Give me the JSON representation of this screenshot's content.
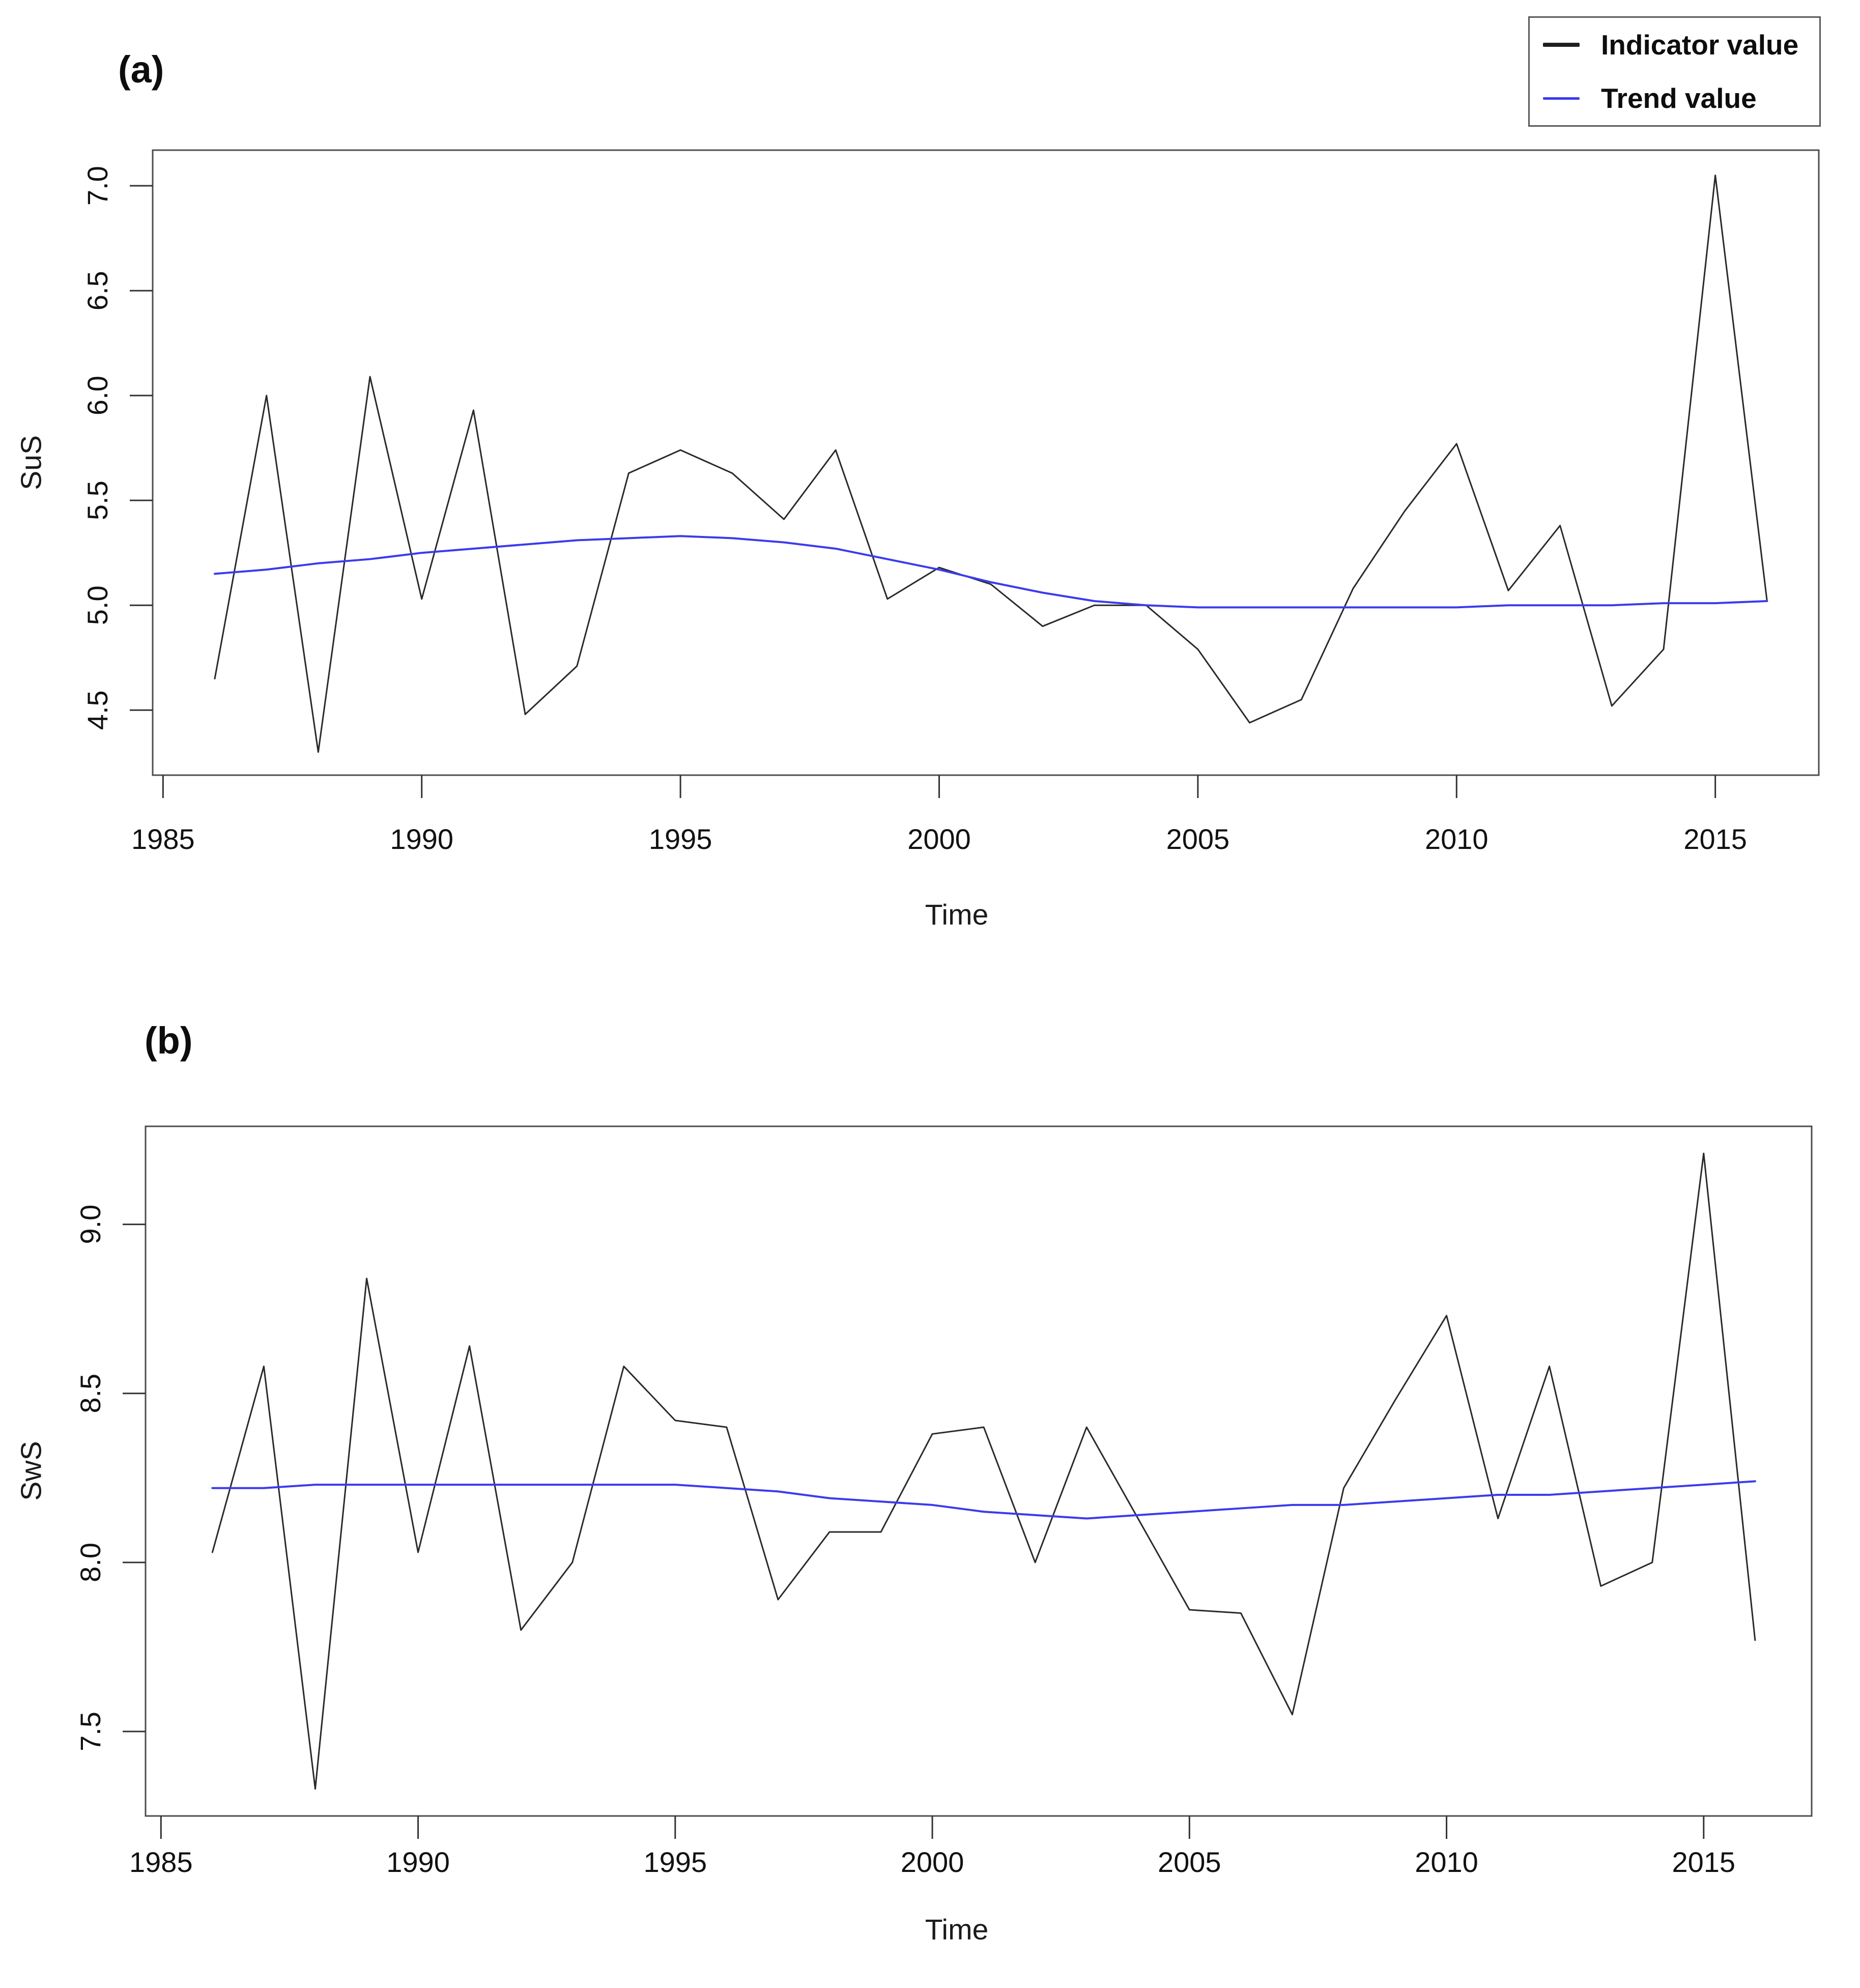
{
  "page": {
    "background": "#ffffff"
  },
  "panels": [
    {
      "label": "(a)"
    },
    {
      "label": "(b)"
    }
  ],
  "legend": {
    "position": "top-right",
    "items": [
      {
        "label": "Indicator value",
        "color": "#1f1f1f"
      },
      {
        "label": "Trend value",
        "color": "#3b3bee"
      }
    ]
  },
  "chart_data": [
    {
      "type": "line",
      "panel": "(a)",
      "xlabel": "Time",
      "ylabel": "SuS",
      "x": [
        1986,
        1987,
        1988,
        1989,
        1990,
        1991,
        1992,
        1993,
        1994,
        1995,
        1996,
        1997,
        1998,
        1999,
        2000,
        2001,
        2002,
        2003,
        2004,
        2005,
        2006,
        2007,
        2008,
        2009,
        2010,
        2011,
        2012,
        2013,
        2014,
        2015,
        2016
      ],
      "series": [
        {
          "name": "Indicator value",
          "color": "#2a2a2a",
          "width": 3,
          "values": [
            4.65,
            6.0,
            4.3,
            6.09,
            5.03,
            5.93,
            4.48,
            4.71,
            5.63,
            5.74,
            5.63,
            5.41,
            5.74,
            5.03,
            5.18,
            5.1,
            4.9,
            5.0,
            5.0,
            4.79,
            4.44,
            4.55,
            5.08,
            5.45,
            5.77,
            5.07,
            5.38,
            4.52,
            4.79,
            7.05,
            5.02
          ]
        },
        {
          "name": "Trend value",
          "color": "#3b3bee",
          "width": 4,
          "values": [
            5.15,
            5.17,
            5.2,
            5.22,
            5.25,
            5.27,
            5.29,
            5.31,
            5.32,
            5.33,
            5.32,
            5.3,
            5.27,
            5.22,
            5.17,
            5.11,
            5.06,
            5.02,
            5.0,
            4.99,
            4.99,
            4.99,
            4.99,
            4.99,
            4.99,
            5.0,
            5.0,
            5.0,
            5.01,
            5.01,
            5.02
          ]
        }
      ],
      "x_ticks": [
        "1985",
        "1990",
        "1995",
        "2000",
        "2005",
        "2010",
        "2015"
      ],
      "y_ticks": [
        "4.5",
        "5.0",
        "5.5",
        "6.0",
        "6.5",
        "7.0"
      ],
      "xlim": [
        1984.8,
        2017.0
      ],
      "ylim": [
        4.19,
        7.17
      ],
      "grid": false,
      "legend_position": "top-right"
    },
    {
      "type": "line",
      "panel": "(b)",
      "xlabel": "Time",
      "ylabel": "SwS",
      "x": [
        1986,
        1987,
        1988,
        1989,
        1990,
        1991,
        1992,
        1993,
        1994,
        1995,
        1996,
        1997,
        1998,
        1999,
        2000,
        2001,
        2002,
        2003,
        2004,
        2005,
        2006,
        2007,
        2008,
        2009,
        2010,
        2011,
        2012,
        2013,
        2014,
        2015,
        2016
      ],
      "series": [
        {
          "name": "Indicator value",
          "color": "#2a2a2a",
          "width": 3,
          "values": [
            8.03,
            8.58,
            7.33,
            8.84,
            8.03,
            8.64,
            7.8,
            8.0,
            8.58,
            8.42,
            8.4,
            7.89,
            8.09,
            8.09,
            8.38,
            8.4,
            8.0,
            8.4,
            8.13,
            7.86,
            7.85,
            7.55,
            8.22,
            8.48,
            8.73,
            8.13,
            8.58,
            7.93,
            8.0,
            9.21,
            7.77
          ]
        },
        {
          "name": "Trend value",
          "color": "#3b3bee",
          "width": 4,
          "values": [
            8.22,
            8.22,
            8.23,
            8.23,
            8.23,
            8.23,
            8.23,
            8.23,
            8.23,
            8.23,
            8.22,
            8.21,
            8.19,
            8.18,
            8.17,
            8.15,
            8.14,
            8.13,
            8.14,
            8.15,
            8.16,
            8.17,
            8.17,
            8.18,
            8.19,
            8.2,
            8.2,
            8.21,
            8.22,
            8.23,
            8.24
          ]
        }
      ],
      "x_ticks": [
        "1985",
        "1990",
        "1995",
        "2000",
        "2005",
        "2010",
        "2015"
      ],
      "y_ticks": [
        "7.5",
        "8.0",
        "8.5",
        "9.0"
      ],
      "xlim": [
        1984.7,
        2017.1
      ],
      "ylim": [
        7.25,
        9.29
      ],
      "grid": false,
      "legend_position": "none"
    }
  ]
}
